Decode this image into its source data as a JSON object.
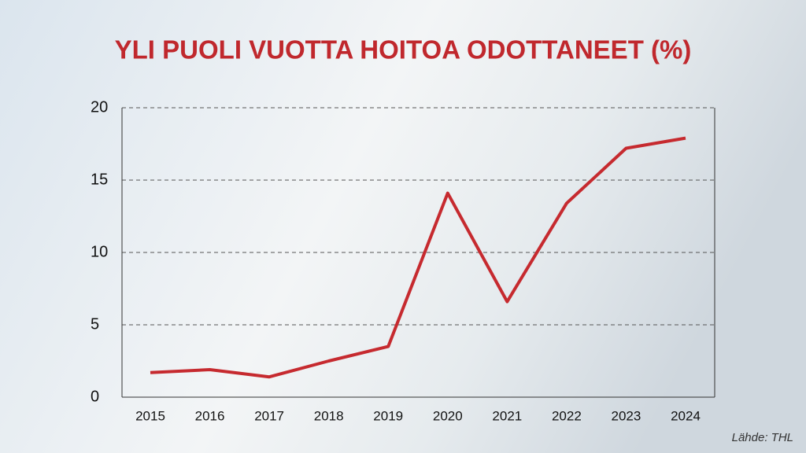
{
  "chart_data": {
    "type": "line",
    "title": "YLI PUOLI VUOTTA HOITOA ODOTTANEET (%)",
    "categories": [
      "2015",
      "2016",
      "2017",
      "2018",
      "2019",
      "2020",
      "2021",
      "2022",
      "2023",
      "2024"
    ],
    "series": [
      {
        "name": "Yli puoli vuotta hoitoa odottaneet",
        "color": "#c62a2f",
        "values": [
          1.7,
          1.9,
          1.4,
          2.5,
          3.5,
          14.1,
          6.6,
          13.4,
          17.2,
          17.9
        ]
      }
    ],
    "ylim": [
      0,
      20
    ],
    "yticks": [
      0,
      5,
      10,
      15,
      20
    ],
    "grid": true,
    "source": "Lähde: THL"
  }
}
